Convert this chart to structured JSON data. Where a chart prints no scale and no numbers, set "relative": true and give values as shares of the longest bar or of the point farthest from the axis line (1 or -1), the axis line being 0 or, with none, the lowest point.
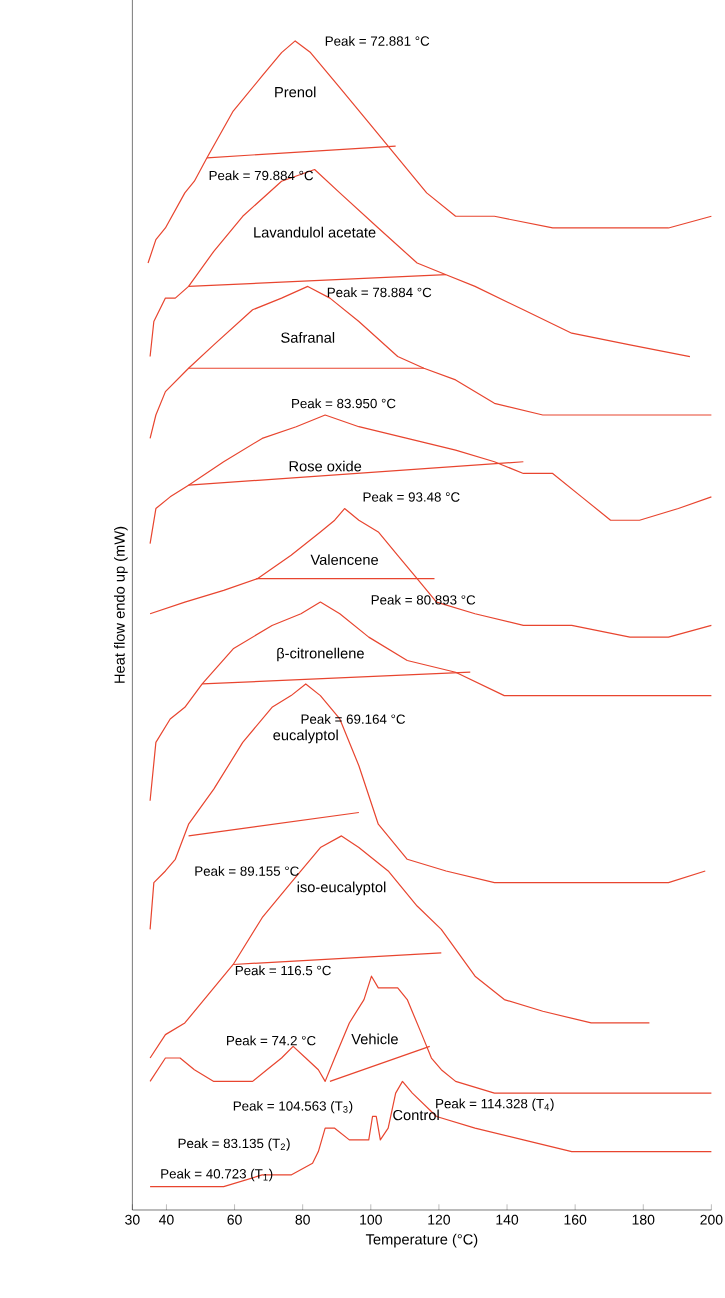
{
  "chart_data": {
    "type": "line",
    "relative": true,
    "xlabel": "Temperature (°C)",
    "ylabel": "Heat flow endo up (mW)",
    "xlim": [
      30,
      200
    ],
    "xticks": [
      30,
      40,
      60,
      80,
      100,
      120,
      140,
      160,
      180,
      200
    ],
    "series": [
      {
        "name": "Prenol",
        "color": "#e8452f",
        "x": [
          34.6,
          36.9,
          39.7,
          45.4,
          48.2,
          51.9,
          59.6,
          68.1,
          73.8,
          77.8,
          82.3,
          90.9,
          99.4,
          107.9,
          116.4,
          124.9,
          136.3,
          153.4,
          164.7,
          176.1,
          187.4,
          200
        ],
        "values": [
          0.81,
          0.83,
          0.84,
          0.87,
          0.88,
          0.9,
          0.94,
          0.97,
          0.99,
          1.0,
          0.99,
          0.96,
          0.93,
          0.9,
          0.87,
          0.85,
          0.85,
          0.84,
          0.84,
          0.84,
          0.84,
          0.85
        ]
      },
      {
        "color": "#e8452f",
        "x": [
          51.9,
          107.3
        ],
        "values": [
          0.9,
          0.91
        ]
      },
      {
        "name": "Lavandulol acetate",
        "color": "#e8452f",
        "x": [
          35.2,
          36.3,
          39.7,
          42.6,
          46.5,
          53.9,
          62.4,
          73.8,
          83.5,
          90.9,
          102.2,
          113.6,
          122.1,
          130.6,
          144.8,
          159,
          176.1,
          193.7
        ],
        "values": [
          0.73,
          0.76,
          0.78,
          0.78,
          0.79,
          0.82,
          0.85,
          0.88,
          0.89,
          0.87,
          0.84,
          0.81,
          0.8,
          0.79,
          0.77,
          0.75,
          0.74,
          0.73
        ]
      },
      {
        "color": "#e8452f",
        "x": [
          46.5,
          122.1
        ],
        "values": [
          0.79,
          0.8
        ]
      },
      {
        "name": "Safranal",
        "color": "#e8452f",
        "x": [
          35.2,
          36.9,
          39.7,
          46.5,
          53.9,
          65.3,
          73.8,
          81.5,
          88,
          96.5,
          107.9,
          115.6,
          124.9,
          136.3,
          150.5,
          164.7,
          200
        ],
        "values": [
          0.66,
          0.68,
          0.7,
          0.72,
          0.74,
          0.77,
          0.78,
          0.79,
          0.78,
          0.76,
          0.73,
          0.72,
          0.71,
          0.69,
          0.68,
          0.68,
          0.68
        ]
      },
      {
        "color": "#e8452f",
        "x": [
          46.5,
          115.6
        ],
        "values": [
          0.72,
          0.72
        ]
      },
      {
        "name": "Rose oxide",
        "color": "#e8452f",
        "x": [
          35.2,
          36.9,
          41.1,
          46.5,
          56.8,
          68.1,
          78.1,
          86.6,
          96.5,
          110.7,
          124.9,
          136.3,
          144.8,
          153.4,
          161.9,
          170.4,
          178.9,
          190.3,
          200
        ],
        "values": [
          0.57,
          0.6,
          0.61,
          0.62,
          0.64,
          0.66,
          0.67,
          0.68,
          0.67,
          0.66,
          0.65,
          0.64,
          0.63,
          0.63,
          0.61,
          0.59,
          0.59,
          0.6,
          0.61
        ]
      },
      {
        "color": "#e8452f",
        "x": [
          46.5,
          144.8
        ],
        "values": [
          0.62,
          0.64
        ]
      },
      {
        "name": "Valencene",
        "color": "#e8452f",
        "x": [
          35.2,
          45.4,
          56.8,
          66.7,
          76.6,
          85.2,
          89.4,
          92.3,
          96.5,
          102.2,
          107.9,
          113.6,
          119.3,
          130.6,
          144.8,
          159,
          176.1,
          187.4,
          200
        ],
        "values": [
          0.51,
          0.52,
          0.53,
          0.54,
          0.56,
          0.58,
          0.59,
          0.6,
          0.59,
          0.58,
          0.56,
          0.54,
          0.52,
          0.51,
          0.5,
          0.5,
          0.49,
          0.49,
          0.5
        ]
      },
      {
        "color": "#e8452f",
        "x": [
          66.4,
          118.7
        ],
        "values": [
          0.54,
          0.54
        ]
      },
      {
        "name": "β-citronellene",
        "color": "#e8452f",
        "x": [
          35.2,
          36.9,
          41.1,
          45.4,
          50.5,
          59.6,
          71,
          79.5,
          85.2,
          90.9,
          99.4,
          110.7,
          124.9,
          139.2,
          159,
          176.1,
          200
        ],
        "values": [
          0.35,
          0.4,
          0.42,
          0.43,
          0.45,
          0.48,
          0.5,
          0.51,
          0.52,
          0.51,
          0.49,
          0.47,
          0.46,
          0.44,
          0.44,
          0.44,
          0.44
        ]
      },
      {
        "color": "#e8452f",
        "x": [
          50.5,
          129.2
        ],
        "values": [
          0.45,
          0.46
        ]
      },
      {
        "name": "eucalyptol",
        "color": "#e8452f",
        "x": [
          35.2,
          36.3,
          39.7,
          42.6,
          46.5,
          53.9,
          62.4,
          71,
          76.6,
          80.9,
          85.2,
          90.9,
          96.5,
          102.2,
          110.7,
          122.1,
          136.3,
          153.4,
          170.4,
          187.4,
          198.2
        ],
        "values": [
          0.24,
          0.28,
          0.29,
          0.3,
          0.33,
          0.36,
          0.4,
          0.43,
          0.44,
          0.45,
          0.44,
          0.42,
          0.38,
          0.33,
          0.3,
          0.29,
          0.28,
          0.28,
          0.28,
          0.28,
          0.29
        ]
      },
      {
        "color": "#e8452f",
        "x": [
          46.5,
          96.5
        ],
        "values": [
          0.32,
          0.34
        ]
      },
      {
        "name": "iso-eucalyptol",
        "color": "#e8452f",
        "x": [
          35.2,
          39.7,
          45.4,
          53.9,
          59.6,
          68.1,
          76.6,
          85.2,
          91.4,
          96.5,
          105.1,
          113.6,
          120.7,
          130.6,
          139.2,
          150.5,
          164.7,
          181.8
        ],
        "values": [
          0.13,
          0.15,
          0.16,
          0.19,
          0.21,
          0.25,
          0.28,
          0.31,
          0.32,
          0.31,
          0.29,
          0.26,
          0.24,
          0.2,
          0.18,
          0.17,
          0.16,
          0.16
        ]
      },
      {
        "color": "#e8452f",
        "x": [
          59.6,
          120.7
        ],
        "values": [
          0.21,
          0.22
        ]
      },
      {
        "name": "Vehicle",
        "color": "#e8452f",
        "x": [
          35.2,
          39.7,
          44,
          48.2,
          53.9,
          59.6,
          65.3,
          69.5,
          73.8,
          77.2,
          80.9,
          84.6,
          86.6,
          89.4,
          93.7,
          98,
          100.2,
          102.2,
          105.1,
          107.9,
          110.7,
          115,
          117.8,
          120.7,
          124.9,
          136.3,
          153.4,
          176.1,
          200
        ],
        "values": [
          0.11,
          0.13,
          0.13,
          0.12,
          0.11,
          0.11,
          0.11,
          0.12,
          0.13,
          0.14,
          0.13,
          0.12,
          0.11,
          0.13,
          0.16,
          0.18,
          0.2,
          0.19,
          0.19,
          0.19,
          0.18,
          0.15,
          0.13,
          0.12,
          0.11,
          0.1,
          0.1,
          0.1,
          0.1
        ]
      },
      {
        "color": "#e8452f",
        "x": [
          88,
          117.3
        ],
        "values": [
          0.11,
          0.14
        ]
      },
      {
        "name": "Control",
        "color": "#e8452f",
        "x": [
          35.2,
          45.4,
          56.8,
          68.1,
          76.6,
          82.9,
          84.6,
          86.6,
          89.4,
          93.7,
          97.4,
          99.4,
          100.5,
          101.6,
          102.8,
          105.1,
          107.3,
          109.3,
          112.2,
          119.3,
          130.6,
          144.8,
          159,
          176.1,
          200
        ],
        "values": [
          0.02,
          0.02,
          0.02,
          0.03,
          0.03,
          0.04,
          0.05,
          0.07,
          0.07,
          0.06,
          0.06,
          0.06,
          0.08,
          0.08,
          0.06,
          0.07,
          0.1,
          0.11,
          0.1,
          0.08,
          0.07,
          0.06,
          0.05,
          0.05,
          0.05
        ]
      }
    ],
    "annotations": [
      "Peak = 72.881 °C",
      "Peak = 79.884 °C",
      "Peak = 78.884 °C",
      "Peak = 83.950 °C",
      "Peak = 93.48 °C",
      "Peak = 80.893 °C",
      "Peak = 69.164 °C",
      "Peak = 89.155 °C",
      "Peak = 116.5 °C",
      "Peak = 74.2 °C",
      "Peak = 104.563 (T$_{3}$)",
      "Peak = 114.328 (T$_{4}$)",
      "Peak = 83.135 (T$_{2}$)",
      "Peak = 40.723 (T$_{1}$)"
    ]
  }
}
